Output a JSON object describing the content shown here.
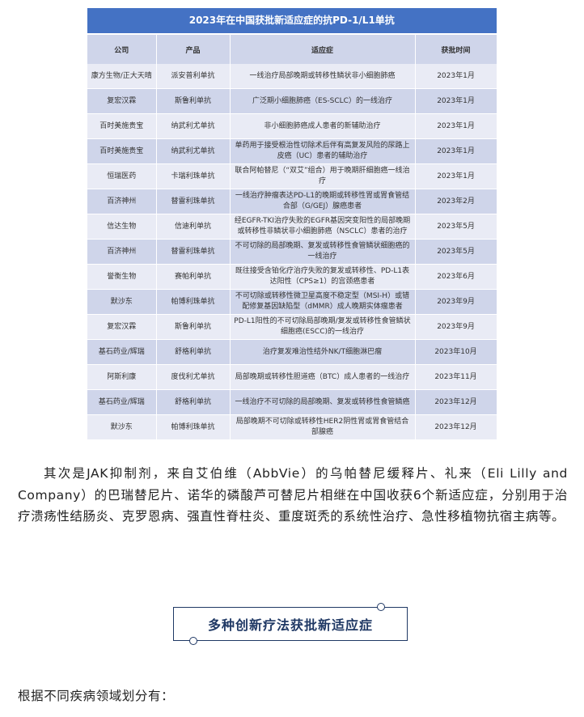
{
  "table": {
    "title": "2023年在中国获批新适应症的抗PD-1/L1单抗",
    "headers": [
      "公司",
      "产品",
      "适应症",
      "获批时间"
    ],
    "rows": [
      [
        "康方生物/正大天晴",
        "派安普利单抗",
        "一线治疗局部晚期或转移性鳞状非小细胞肺癌",
        "2023年1月"
      ],
      [
        "复宏汉霖",
        "斯鲁利单抗",
        "广泛期小细胞肺癌（ES-SCLC）的一线治疗",
        "2023年1月"
      ],
      [
        "百时美施贵宝",
        "纳武利尤单抗",
        "非小细胞肺癌成人患者的新辅助治疗",
        "2023年1月"
      ],
      [
        "百时美施贵宝",
        "纳武利尤单抗",
        "单药用于接受根治性切除术后伴有高复发风险的尿路上皮癌（UC）患者的辅助治疗",
        "2023年1月"
      ],
      [
        "恒瑞医药",
        "卡瑞利珠单抗",
        "联合阿帕替尼（“双艾”组合）用于晚期肝细胞癌一线治疗",
        "2023年1月"
      ],
      [
        "百济神州",
        "替雷利珠单抗",
        "一线治疗肿瘤表达PD-L1的晚期或转移性胃或胃食管结合部（G/GEJ）腺癌患者",
        "2023年2月"
      ],
      [
        "信达生物",
        "信迪利单抗",
        "经EGFR-TKI治疗失败的EGFR基因突变阳性的局部晚期或转移性非鳞状非小细胞肺癌（NSCLC）患者的治疗",
        "2023年5月"
      ],
      [
        "百济神州",
        "替雷利珠单抗",
        "不可切除的局部晚期、复发或转移性食管鳞状细胞癌的一线治疗",
        "2023年5月"
      ],
      [
        "誉衡生物",
        "赛帕利单抗",
        "既往接受含铂化疗治疗失败的复发或转移性、PD-L1表达阳性（CPS≥1）的宫颈癌患者",
        "2023年6月"
      ],
      [
        "默沙东",
        "帕博利珠单抗",
        "不可切除或转移性微卫星高度不稳定型（MSI-H）或错配修复基因缺陷型（dMMR）成人晚期实体瘤患者",
        "2023年9月"
      ],
      [
        "复宏汉霖",
        "斯鲁利单抗",
        "PD-L1阳性的不可切除局部晚期/复发或转移性食管鳞状细胞癌(ESCC)的一线治疗",
        "2023年9月"
      ],
      [
        "基石药业/辉瑞",
        "舒格利单抗",
        "治疗复发难治性结外NK/T细胞淋巴瘤",
        "2023年10月"
      ],
      [
        "阿斯利康",
        "度伐利尤单抗",
        "局部晚期或转移性胆道癌（BTC）成人患者的一线治疗",
        "2023年11月"
      ],
      [
        "基石药业/辉瑞",
        "舒格利单抗",
        "一线治疗不可切除的局部晚期、复发或转移性食管鳞癌",
        "2023年12月"
      ],
      [
        "默沙东",
        "帕博利珠单抗",
        "局部晚期不可切除或转移性HER2阴性胃或胃食管结合部腺癌",
        "2023年12月"
      ]
    ]
  },
  "paragraph": "其次是JAK抑制剂，来自艾伯维（AbbVie）的乌帕替尼缓释片、礼来（Eli Lilly and Company）的巴瑞替尼片、诺华的磷酸芦可替尼片相继在中国收获6个新适应症，分别用于治疗溃疡性结肠炎、克罗恩病、强直性脊柱炎、重度斑秃的系统性治疗、急性移植物抗宿主病等。",
  "section_heading": "多种创新疗法获批新适应症",
  "footer_text": "根据不同疾病领域划分有："
}
